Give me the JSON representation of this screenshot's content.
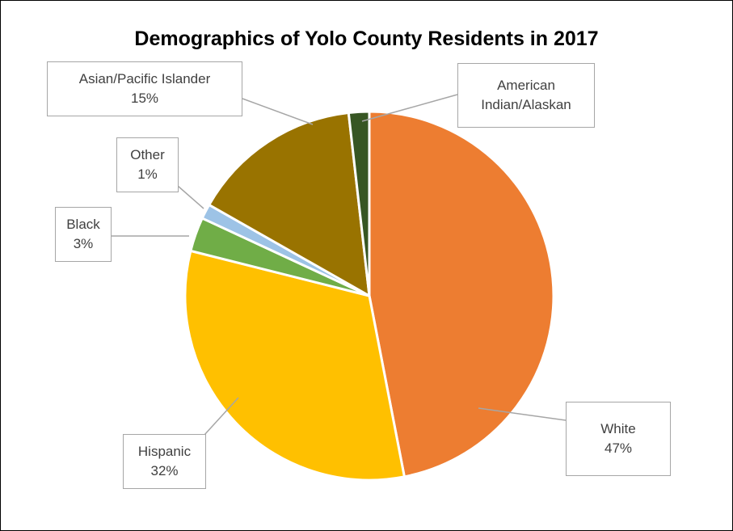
{
  "chart_data": {
    "type": "pie",
    "title": "Demographics of Yolo County Residents in 2017",
    "slices": [
      {
        "name": "White",
        "value": 47,
        "label_pct": "47%",
        "color": "#ED7D31"
      },
      {
        "name": "Hispanic",
        "value": 32,
        "label_pct": "32%",
        "color": "#FFC000"
      },
      {
        "name": "Black",
        "value": 3,
        "label_pct": "3%",
        "color": "#70AD47"
      },
      {
        "name": "Other",
        "value": 1.3,
        "label_pct": "1%",
        "color": "#9DC3E6"
      },
      {
        "name": "Asian/Pacific Islander",
        "value": 15,
        "label_pct": "15%",
        "color": "#997300"
      },
      {
        "name": "American Indian/Alaskan",
        "value": 1.8,
        "label_pct": "",
        "color": "#375623"
      }
    ]
  },
  "labels": {
    "white": {
      "name": "White",
      "pct": "47%"
    },
    "hispanic": {
      "name": "Hispanic",
      "pct": "32%"
    },
    "black": {
      "name": "Black",
      "pct": "3%"
    },
    "other": {
      "name": "Other",
      "pct": "1%"
    },
    "asian": {
      "name": "Asian/Pacific Islander",
      "pct": "15%"
    },
    "american_indian": {
      "line1": "American",
      "line2": "Indian/Alaskan"
    }
  }
}
